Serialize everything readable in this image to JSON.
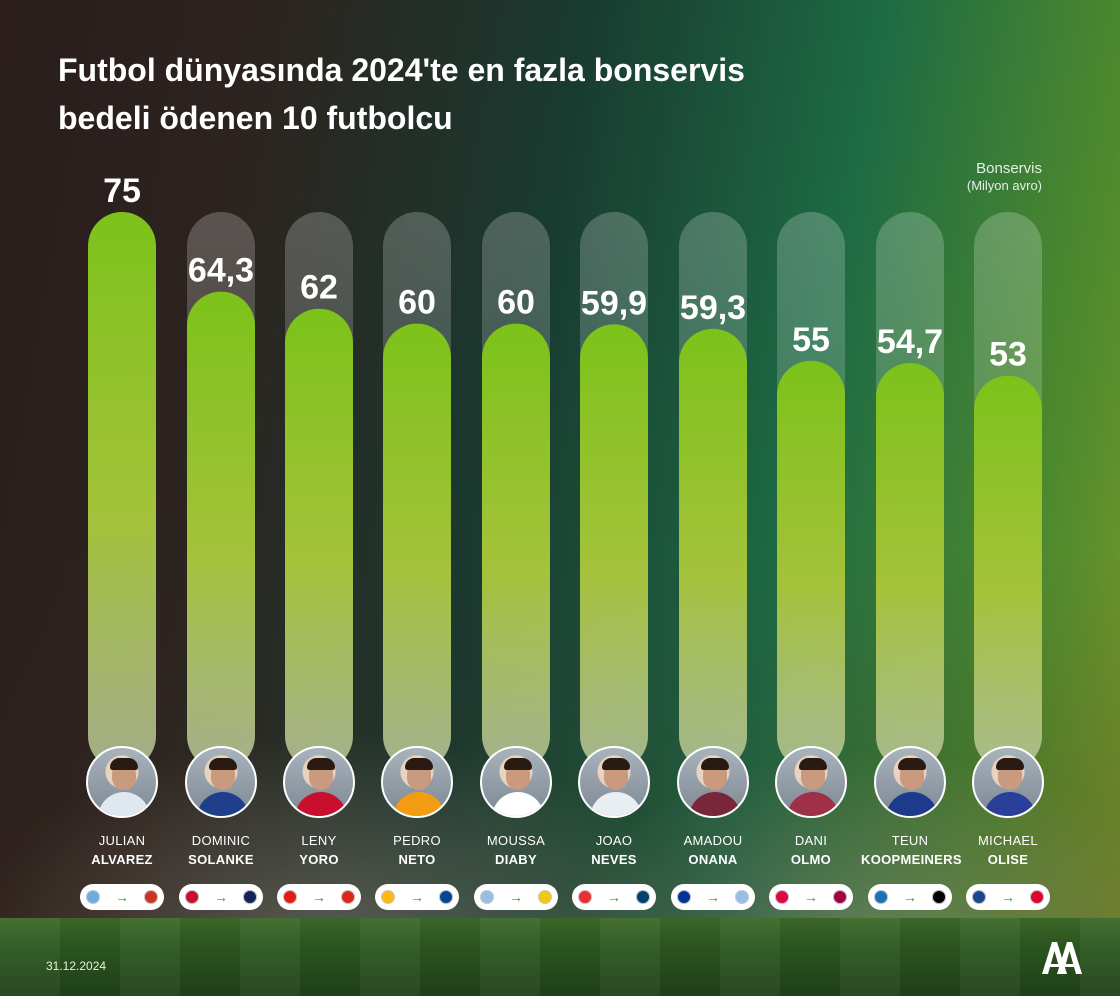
{
  "title": {
    "line1": "Futbol dünyasında 2024'te en fazla bonservis",
    "line2": "bedeli ödenen 10 futbolcu"
  },
  "unit": {
    "line1": "Bonservis",
    "line2": "(Milyon avro)"
  },
  "date": "31.12.2024",
  "logo_text": "AA",
  "colors": {
    "bar_top": "#7cc21a",
    "bar_bottom": "#b8c49a",
    "track": "#ffffff",
    "value_text": "#ffffff"
  },
  "chart_data": {
    "type": "bar",
    "title": "Futbol dünyasında 2024'te en fazla bonservis bedeli ödenen 10 futbolcu",
    "ylabel": "Bonservis (Milyon avro)",
    "categories": [
      "Julian Alvarez",
      "Dominic Solanke",
      "Leny Yoro",
      "Pedro Neto",
      "Moussa Diaby",
      "Joao Neves",
      "Amadou Onana",
      "Dani Olmo",
      "Teun Koopmeiners",
      "Michael Olise"
    ],
    "values": [
      75,
      64.3,
      62,
      60,
      60,
      59.9,
      59.3,
      55,
      54.7,
      53
    ],
    "value_labels": [
      "75",
      "64,3",
      "62",
      "60",
      "60",
      "59,9",
      "59,3",
      "55",
      "54,7",
      "53"
    ],
    "ylim": [
      0,
      75
    ],
    "grid": false,
    "legend": "none"
  },
  "players": [
    {
      "first": "JULIAN",
      "last": "ALVAREZ",
      "from_club": "manchester-city-icon",
      "to_club": "atletico-madrid-icon",
      "from_color": "#6cabdd",
      "to_color": "#cb3524"
    },
    {
      "first": "DOMINIC",
      "last": "SOLANKE",
      "from_club": "bournemouth-icon",
      "to_club": "tottenham-icon",
      "from_color": "#c8102e",
      "to_color": "#132257"
    },
    {
      "first": "LENY",
      "last": "YORO",
      "from_club": "lille-icon",
      "to_club": "manchester-united-icon",
      "from_color": "#e01e13",
      "to_color": "#da291c"
    },
    {
      "first": "PEDRO",
      "last": "NETO",
      "from_club": "wolves-icon",
      "to_club": "chelsea-icon",
      "from_color": "#fdb913",
      "to_color": "#034694"
    },
    {
      "first": "MOUSSA",
      "last": "DIABY",
      "from_club": "aston-villa-icon",
      "to_club": "al-ittihad-icon",
      "from_color": "#95bfe5",
      "to_color": "#f2c811"
    },
    {
      "first": "JOAO",
      "last": "NEVES",
      "from_club": "benfica-icon",
      "to_club": "psg-icon",
      "from_color": "#e83030",
      "to_color": "#004170"
    },
    {
      "first": "AMADOU",
      "last": "ONANA",
      "from_club": "everton-icon",
      "to_club": "aston-villa-icon",
      "from_color": "#003399",
      "to_color": "#95bfe5"
    },
    {
      "first": "DANI",
      "last": "OLMO",
      "from_club": "rb-leipzig-icon",
      "to_club": "barcelona-icon",
      "from_color": "#dd0741",
      "to_color": "#a50044"
    },
    {
      "first": "TEUN",
      "last": "KOOPMEINERS",
      "from_club": "atalanta-icon",
      "to_club": "juventus-icon",
      "from_color": "#1e71b8",
      "to_color": "#000000"
    },
    {
      "first": "MICHAEL",
      "last": "OLISE",
      "from_club": "crystal-palace-icon",
      "to_club": "bayern-munich-icon",
      "from_color": "#1b458f",
      "to_color": "#dc052d"
    }
  ],
  "kit_colors": [
    "#dfe7ef",
    "#1f3f8a",
    "#c8102e",
    "#f39c12",
    "#ffffff",
    "#e9eef2",
    "#7a263a",
    "#a03048",
    "#1e3a8a",
    "#2a3f9a"
  ]
}
